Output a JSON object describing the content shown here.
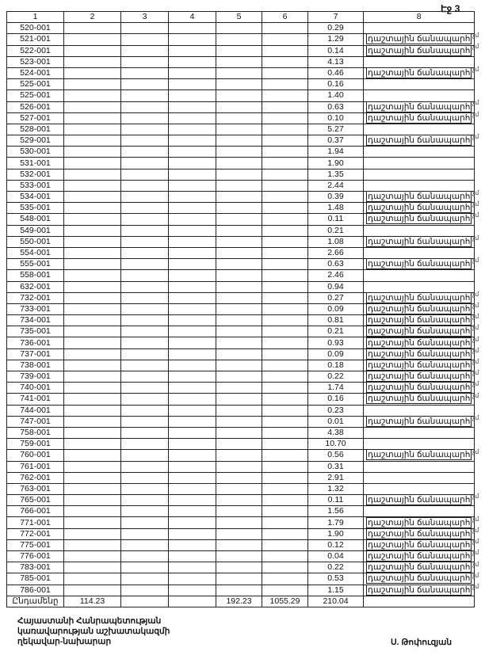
{
  "page_label": "Էջ 3",
  "headers": [
    "1",
    "2",
    "3",
    "4",
    "5",
    "6",
    "7",
    "8"
  ],
  "road_text": "դաշտային ճանապարհ",
  "margin_note": "չմ",
  "rows": [
    [
      "520-001",
      "0.29",
      0
    ],
    [
      "521-001",
      "1.29",
      1
    ],
    [
      "522-001",
      "0.14",
      1
    ],
    [
      "523-001",
      "4.13",
      0
    ],
    [
      "524-001",
      "0.46",
      1
    ],
    [
      "525-001",
      "0.16",
      0
    ],
    [
      "525-001",
      "1.40",
      0
    ],
    [
      "526-001",
      "0.63",
      1
    ],
    [
      "527-001",
      "0.10",
      1
    ],
    [
      "528-001",
      "5.27",
      0
    ],
    [
      "529-001",
      "0.37",
      1
    ],
    [
      "530-001",
      "1.94",
      0
    ],
    [
      "531-001",
      "1.90",
      0
    ],
    [
      "532-001",
      "1.35",
      0
    ],
    [
      "533-001",
      "2.44",
      0
    ],
    [
      "534-001",
      "0.39",
      1
    ],
    [
      "535-001",
      "1.48",
      1
    ],
    [
      "548-001",
      "0.11",
      1
    ],
    [
      "549-001",
      "0.21",
      0
    ],
    [
      "550-001",
      "1.08",
      1
    ],
    [
      "554-001",
      "2.66",
      0
    ],
    [
      "555-001",
      "0.63",
      1
    ],
    [
      "558-001",
      "2.46",
      0
    ],
    [
      "632-001",
      "0.94",
      0
    ],
    [
      "732-001",
      "0.27",
      1
    ],
    [
      "733-001",
      "0.09",
      1
    ],
    [
      "734-001",
      "0.81",
      1
    ],
    [
      "735-001",
      "0.21",
      1
    ],
    [
      "736-001",
      "0.93",
      1
    ],
    [
      "737-001",
      "0.09",
      1
    ],
    [
      "738-001",
      "0.18",
      1
    ],
    [
      "739-001",
      "0.22",
      1
    ],
    [
      "740-001",
      "1.74",
      1
    ],
    [
      "741-001",
      "0.16",
      1
    ],
    [
      "744-001",
      "0.23",
      0
    ],
    [
      "747-001",
      "0.01",
      1
    ],
    [
      "758-001",
      "4.38",
      0
    ],
    [
      "759-001",
      "10.70",
      0
    ],
    [
      "760-001",
      "0.56",
      1
    ],
    [
      "761-001",
      "0.31",
      0
    ],
    [
      "762-001",
      "2.91",
      0
    ],
    [
      "763-001",
      "1.32",
      0
    ],
    [
      "765-001",
      "0.11",
      1
    ],
    [
      "766-001",
      "1.56",
      0
    ],
    [
      "771-001",
      "1.79",
      1
    ],
    [
      "772-001",
      "1.90",
      1
    ],
    [
      "775-001",
      "0.12",
      1
    ],
    [
      "776-001",
      "0.04",
      1
    ],
    [
      "783-001",
      "0.22",
      1
    ],
    [
      "785-001",
      "0.53",
      1
    ],
    [
      "786-001",
      "1.15",
      1
    ]
  ],
  "total": {
    "label": "Ընդամենը",
    "c2": "114.23",
    "c3": "",
    "c4": "",
    "c5": "192.23",
    "c6": "1055.29",
    "c7": "210.04",
    "c8": ""
  },
  "signature": {
    "line1": "Հայաստանի Հանրապետության",
    "line2": "կառավարության աշխատակազմի",
    "line3": "ղեկավար-նախարար",
    "name": "Ս. Թոփուզյան"
  }
}
